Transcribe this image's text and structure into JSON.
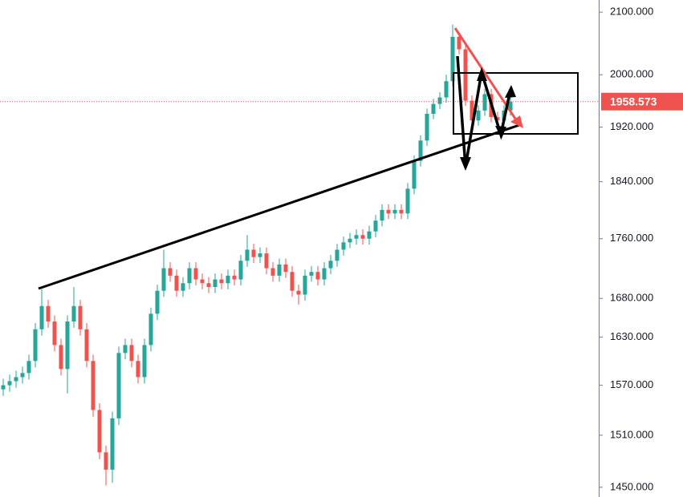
{
  "chart_data": {
    "type": "candlestick",
    "log_scale": true,
    "up_color": "#26a69a",
    "down_color": "#ef5350",
    "last_price_color": "#ef5350",
    "ylim": [
      1439,
      2120
    ],
    "yticks": [
      {
        "value": 2100,
        "label": "2100.000"
      },
      {
        "value": 2000,
        "label": "2000.000"
      },
      {
        "value": 1920,
        "label": "1920.000"
      },
      {
        "value": 1840,
        "label": "1840.000"
      },
      {
        "value": 1760,
        "label": "1760.000"
      },
      {
        "value": 1680,
        "label": "1680.000"
      },
      {
        "value": 1630,
        "label": "1630.000"
      },
      {
        "value": 1570,
        "label": "1570.000"
      },
      {
        "value": 1510,
        "label": "1510.000"
      },
      {
        "value": 1450,
        "label": "1450.000"
      }
    ],
    "last_price": 1958.573,
    "open": [
      1565,
      1570,
      1575,
      1580,
      1585,
      1600,
      1640,
      1670,
      1650,
      1620,
      1590,
      1650,
      1670,
      1640,
      1600,
      1540,
      1490,
      1470,
      1530,
      1610,
      1620,
      1600,
      1580,
      1620,
      1660,
      1690,
      1720,
      1710,
      1690,
      1700,
      1720,
      1705,
      1700,
      1695,
      1705,
      1700,
      1710,
      1705,
      1730,
      1745,
      1735,
      1740,
      1720,
      1710,
      1725,
      1715,
      1690,
      1685,
      1710,
      1715,
      1705,
      1720,
      1730,
      1745,
      1755,
      1760,
      1765,
      1760,
      1770,
      1785,
      1800,
      1795,
      1800,
      1795,
      1830,
      1870,
      1900,
      1940,
      1955,
      1965,
      1990,
      2060,
      2040,
      1960,
      1930,
      1945,
      1970,
      1935,
      1930,
      1945
    ],
    "high": [
      1578,
      1583,
      1588,
      1593,
      1608,
      1648,
      1692,
      1678,
      1658,
      1628,
      1658,
      1695,
      1678,
      1648,
      1608,
      1548,
      1498,
      1538,
      1618,
      1628,
      1628,
      1608,
      1628,
      1668,
      1698,
      1745,
      1728,
      1718,
      1708,
      1728,
      1728,
      1713,
      1708,
      1713,
      1713,
      1718,
      1718,
      1738,
      1765,
      1753,
      1748,
      1748,
      1728,
      1733,
      1733,
      1723,
      1698,
      1718,
      1723,
      1723,
      1728,
      1738,
      1753,
      1763,
      1768,
      1773,
      1773,
      1778,
      1793,
      1808,
      1808,
      1808,
      1808,
      1838,
      1878,
      1908,
      1948,
      1963,
      1973,
      2000,
      2080,
      2068,
      2048,
      1968,
      1953,
      1978,
      1978,
      1943,
      1953,
      1966
    ],
    "low": [
      1557,
      1562,
      1567,
      1572,
      1577,
      1592,
      1632,
      1642,
      1612,
      1582,
      1560,
      1642,
      1632,
      1592,
      1532,
      1482,
      1452,
      1455,
      1522,
      1602,
      1592,
      1572,
      1572,
      1612,
      1652,
      1682,
      1702,
      1682,
      1682,
      1692,
      1697,
      1692,
      1687,
      1687,
      1692,
      1692,
      1697,
      1697,
      1722,
      1727,
      1727,
      1712,
      1702,
      1702,
      1707,
      1682,
      1672,
      1677,
      1702,
      1697,
      1697,
      1712,
      1722,
      1737,
      1747,
      1752,
      1752,
      1752,
      1762,
      1777,
      1787,
      1787,
      1787,
      1787,
      1822,
      1862,
      1892,
      1932,
      1947,
      1957,
      1982,
      2032,
      1952,
      1922,
      1922,
      1937,
      1927,
      1922,
      1922,
      1937
    ],
    "close": [
      1570,
      1575,
      1580,
      1585,
      1600,
      1640,
      1670,
      1650,
      1620,
      1590,
      1650,
      1670,
      1640,
      1600,
      1540,
      1490,
      1470,
      1530,
      1610,
      1620,
      1600,
      1580,
      1620,
      1660,
      1690,
      1720,
      1710,
      1690,
      1700,
      1720,
      1705,
      1700,
      1695,
      1705,
      1700,
      1710,
      1705,
      1730,
      1745,
      1735,
      1740,
      1720,
      1710,
      1725,
      1715,
      1690,
      1685,
      1710,
      1715,
      1705,
      1720,
      1730,
      1745,
      1755,
      1760,
      1765,
      1760,
      1770,
      1785,
      1800,
      1795,
      1800,
      1795,
      1830,
      1870,
      1900,
      1940,
      1955,
      1965,
      1990,
      2060,
      2040,
      1960,
      1930,
      1945,
      1970,
      1935,
      1930,
      1945,
      1958.573
    ]
  }
}
